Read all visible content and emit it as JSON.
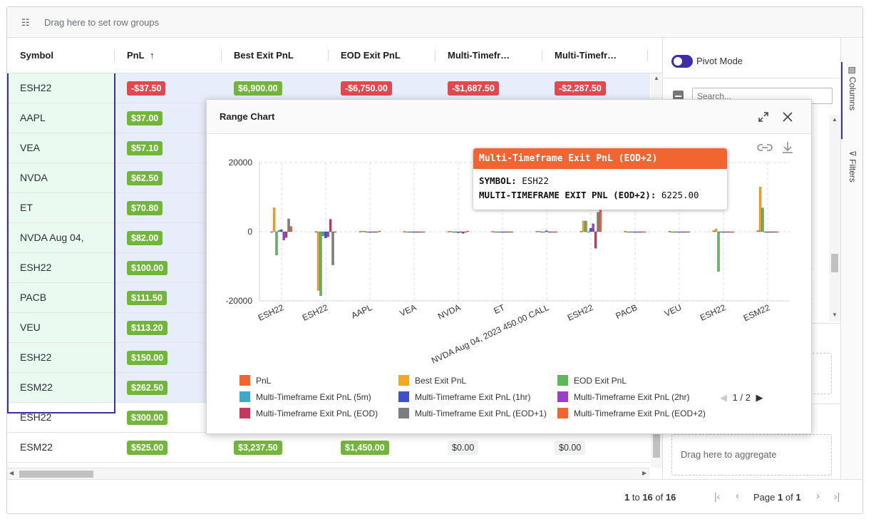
{
  "toolbar": {
    "row_group_placeholder": "Drag here to set row groups"
  },
  "columns": [
    {
      "label": "Symbol",
      "sort": ""
    },
    {
      "label": "PnL",
      "sort": "↑"
    },
    {
      "label": "Best Exit PnL",
      "sort": ""
    },
    {
      "label": "EOD Exit PnL",
      "sort": ""
    },
    {
      "label": "Multi-Timefr…",
      "sort": ""
    },
    {
      "label": "Multi-Timefr…",
      "sort": ""
    }
  ],
  "rows": [
    {
      "symbol": "ESH22",
      "pnl": "-$37.50",
      "best": "$6,900.00",
      "eod": "-$6,750.00",
      "m1": "-$1,687.50",
      "m2": "-$2,287.50",
      "selected": true
    },
    {
      "symbol": "AAPL",
      "pnl": "$37.00",
      "selected": true
    },
    {
      "symbol": "VEA",
      "pnl": "$57.10",
      "selected": true
    },
    {
      "symbol": "NVDA",
      "pnl": "$62.50",
      "selected": true
    },
    {
      "symbol": "ET",
      "pnl": "$70.80",
      "selected": true
    },
    {
      "symbol": "NVDA Aug 04,",
      "pnl": "$82.00",
      "selected": true
    },
    {
      "symbol": "ESH22",
      "pnl": "$100.00",
      "selected": true
    },
    {
      "symbol": "PACB",
      "pnl": "$111.50",
      "selected": true
    },
    {
      "symbol": "VEU",
      "pnl": "$113.20",
      "selected": true
    },
    {
      "symbol": "ESH22",
      "pnl": "$150.00",
      "selected": true
    },
    {
      "symbol": "ESM22",
      "pnl": "$262.50",
      "selected": true
    },
    {
      "symbol": "ESH22",
      "pnl": "$300.00",
      "selected": false
    },
    {
      "symbol": "ESM22",
      "pnl": "$525.00",
      "best": "$3,237.50",
      "eod": "$1,450.00",
      "m1": "$0.00",
      "m2": "$0.00",
      "selected": false
    }
  ],
  "footer": {
    "from": "1",
    "to_label": "to",
    "to": "16",
    "of_label": "of",
    "total": "16",
    "page_label": "Page",
    "page": "1",
    "page_of": "of",
    "pages": "1"
  },
  "side_panel": {
    "pivot_label": "Pivot Mode",
    "search_placeholder": "Search...",
    "aggregate_placeholder": "Drag here to aggregate",
    "tab_columns": "Columns",
    "tab_filters": "Filters"
  },
  "dialog": {
    "title": "Range Chart",
    "tooltip": {
      "title": "Multi-Timeframe Exit PnL (EOD+2)",
      "k1": "SYMBOL:",
      "v1": "ESH22",
      "k2": "MULTI-TIMEFRAME EXIT PNL (EOD+2):",
      "v2": "6225.00"
    },
    "legend_pager": "1 / 2"
  },
  "chart_data": {
    "type": "bar",
    "categories": [
      "ESH22",
      "ESH22",
      "AAPL",
      "VEA",
      "NVDA",
      "ET",
      "NVDA Aug 04, 2023 450.00 CALL",
      "ESH22",
      "PACB",
      "VEU",
      "ESH22",
      "ESM22"
    ],
    "ylim": [
      -20000,
      20000
    ],
    "yticks": [
      "20000",
      "0",
      "-20000"
    ],
    "grid": true,
    "legend_position": "bottom",
    "series": [
      {
        "name": "PnL",
        "color": "#f26531",
        "values": [
          -37.5,
          37,
          57.1,
          62.5,
          70.8,
          82,
          100,
          111.5,
          113.2,
          150,
          262.5,
          300
        ]
      },
      {
        "name": "Best Exit PnL",
        "color": "#f5a623",
        "values": [
          6900,
          -17000,
          200,
          0,
          150,
          0,
          150,
          3100,
          0,
          0,
          800,
          12900
        ]
      },
      {
        "name": "EOD Exit PnL",
        "color": "#5cb85c",
        "values": [
          -6750,
          -18500,
          100,
          0,
          -100,
          0,
          -100,
          3100,
          0,
          0,
          -11500,
          6900
        ]
      },
      {
        "name": "Multi-Timeframe Exit PnL (5m)",
        "color": "#3ea8c8",
        "values": [
          400,
          -1200,
          0,
          0,
          0,
          0,
          0,
          0,
          0,
          0,
          0,
          0
        ]
      },
      {
        "name": "Multi-Timeframe Exit PnL (1hr)",
        "color": "#3f51c8",
        "values": [
          600,
          -1800,
          0,
          0,
          -300,
          0,
          300,
          1000,
          0,
          0,
          0,
          0
        ]
      },
      {
        "name": "Multi-Timeframe Exit PnL (2hr)",
        "color": "#9b3fc8",
        "values": [
          -2400,
          -1500,
          0,
          0,
          0,
          0,
          0,
          2300,
          0,
          0,
          0,
          0
        ]
      },
      {
        "name": "Multi-Timeframe Exit PnL (EOD)",
        "color": "#c8375b",
        "values": [
          -1687.5,
          3600,
          0,
          0,
          -500,
          0,
          0,
          -4800,
          0,
          0,
          0,
          0
        ]
      },
      {
        "name": "Multi-Timeframe Exit PnL (EOD+1)",
        "color": "#7d7d7d",
        "values": [
          3700,
          -9600,
          0,
          0,
          0,
          0,
          0,
          5600,
          0,
          0,
          0,
          0
        ]
      },
      {
        "name": "Multi-Timeframe Exit PnL (EOD+2)",
        "color": "#f26531",
        "values": [
          1500,
          0,
          200,
          0,
          200,
          0,
          -200,
          6225,
          0,
          0,
          0,
          0
        ]
      }
    ]
  }
}
